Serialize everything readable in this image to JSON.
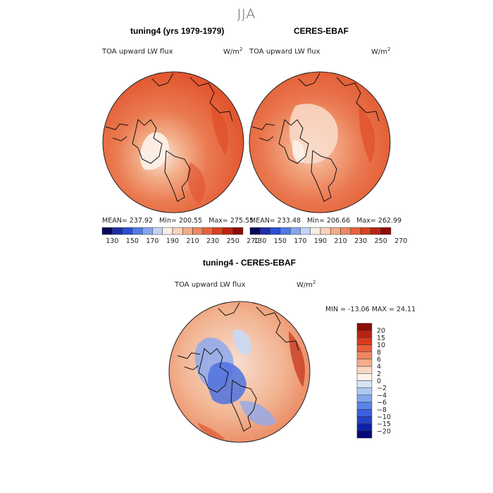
{
  "main_title": "JJA",
  "panels": [
    {
      "title": "tuning4 (yrs 1979-1979)",
      "variable": "TOA upward LW flux",
      "units_base": "W/m",
      "units_exp": "2",
      "mean_label": "MEAN=",
      "mean": "237.92",
      "min_label": "Min=",
      "min": "200.55",
      "max_label": "Max=",
      "max": "275.55"
    },
    {
      "title": "CERES-EBAF",
      "variable": "TOA upward LW flux",
      "units_base": "W/m",
      "units_exp": "2",
      "mean_label": "MEAN=",
      "mean": "233.48",
      "min_label": "Min=",
      "min": "206.66",
      "max_label": "Max=",
      "max": "262.99"
    }
  ],
  "top_colorbar": {
    "colors": [
      "#08085a",
      "#1c2ea8",
      "#2c4fd0",
      "#4f79e8",
      "#83a6f0",
      "#c2d4f6",
      "#f7eee6",
      "#f6d3bd",
      "#f2ab88",
      "#ee8760",
      "#e8633d",
      "#d94220",
      "#b92414",
      "#8c0d08"
    ],
    "labels": [
      "130",
      "150",
      "170",
      "190",
      "210",
      "230",
      "250",
      "270"
    ]
  },
  "diff_panel": {
    "title": "tuning4 - CERES-EBAF",
    "variable": "TOA upward LW flux",
    "units_base": "W/m",
    "units_exp": "2",
    "minmax_text": "MIN = -13.06 MAX =  24.11"
  },
  "diff_colorbar": {
    "colors": [
      "#8c0d08",
      "#b72414",
      "#d83a1c",
      "#e8603a",
      "#ee8560",
      "#f4ad8c",
      "#f7d6c2",
      "#fbf3ec",
      "#d6e4f8",
      "#adc8f2",
      "#83a6ee",
      "#5c84e8",
      "#3a5fe0",
      "#2141c8",
      "#0e22a6",
      "#060a78"
    ],
    "labels": [
      "20",
      "15",
      "10",
      "8",
      "6",
      "4",
      "2",
      "0",
      "−2",
      "−4",
      "−6",
      "−8",
      "−10",
      "−15",
      "−20"
    ]
  }
}
